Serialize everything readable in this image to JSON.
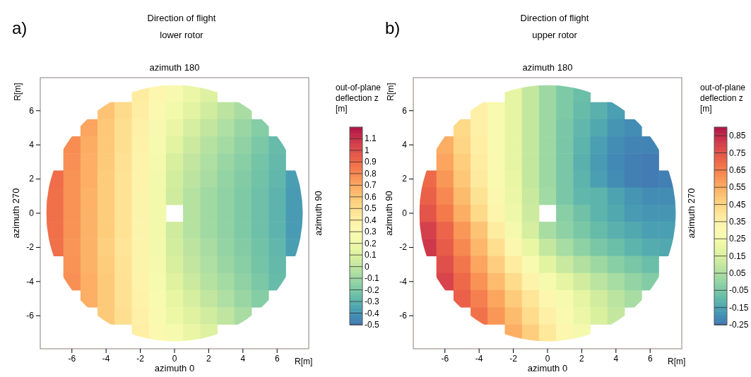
{
  "chart_data": [
    {
      "type": "heatmap",
      "title": "Direction of flight",
      "subtitle": "lower rotor",
      "xlabel": "R[m]",
      "ylabel": "R[m]",
      "clabel": "out-of-plane deflection z [m]",
      "annotations": [
        "a)",
        "azimuth 180",
        "azimuth 0",
        "azimuth 270",
        "azimuth 90"
      ],
      "categories": [
        null,
        "-6",
        null,
        "-4",
        null,
        "-2",
        null,
        "0",
        null,
        "2",
        null,
        "4",
        null,
        "6",
        null
      ],
      "y_categories": [
        null,
        "6",
        null,
        "4",
        null,
        "2",
        null,
        "0",
        null,
        "-2",
        null,
        "-4",
        null,
        "-6",
        null
      ],
      "clim": [
        -0.5,
        1.2
      ],
      "cticks": [
        -0.5,
        -0.4,
        -0.3,
        -0.2,
        -0.1,
        0,
        0.1,
        0.2,
        0.3,
        0.4,
        0.5,
        0.6,
        0.7,
        0.8,
        0.9,
        1,
        1.1
      ],
      "cells": [
        [
          null,
          null,
          null,
          null,
          null,
          0.42,
          0.34,
          0.28,
          0.18,
          0.11,
          null,
          null,
          null,
          null,
          null
        ],
        [
          null,
          null,
          null,
          0.61,
          0.51,
          0.41,
          0.31,
          0.22,
          0.13,
          0.06,
          -0.01,
          -0.07,
          null,
          null,
          null
        ],
        [
          null,
          null,
          0.71,
          0.59,
          0.49,
          0.39,
          0.28,
          0.17,
          0.08,
          0.01,
          -0.05,
          -0.11,
          -0.17,
          null,
          null
        ],
        [
          null,
          0.79,
          0.69,
          0.59,
          0.49,
          0.38,
          0.26,
          0.13,
          0.04,
          -0.03,
          -0.08,
          -0.14,
          -0.2,
          -0.26,
          null
        ],
        [
          null,
          0.78,
          0.68,
          0.58,
          0.48,
          0.37,
          0.24,
          0.09,
          0.01,
          -0.05,
          -0.11,
          -0.16,
          -0.22,
          -0.27,
          null
        ],
        [
          0.89,
          0.77,
          0.68,
          0.57,
          0.47,
          0.37,
          0.23,
          0.07,
          -0.01,
          -0.07,
          -0.13,
          -0.18,
          -0.23,
          -0.28,
          -0.37
        ],
        [
          0.88,
          0.77,
          0.67,
          0.57,
          0.47,
          0.36,
          0.22,
          0.05,
          -0.03,
          -0.09,
          -0.14,
          -0.19,
          -0.24,
          -0.29,
          -0.38
        ],
        [
          0.88,
          0.77,
          0.67,
          0.57,
          0.47,
          0.36,
          0.22,
          null,
          -0.03,
          -0.09,
          -0.14,
          -0.19,
          -0.24,
          -0.29,
          -0.38
        ],
        [
          0.88,
          0.77,
          0.67,
          0.57,
          0.47,
          0.36,
          0.22,
          0.05,
          -0.03,
          -0.09,
          -0.14,
          -0.19,
          -0.24,
          -0.29,
          -0.38
        ],
        [
          0.88,
          0.76,
          0.67,
          0.56,
          0.46,
          0.36,
          0.23,
          0.07,
          -0.01,
          -0.07,
          -0.13,
          -0.18,
          -0.23,
          -0.28,
          -0.37
        ],
        [
          null,
          0.77,
          0.67,
          0.57,
          0.47,
          0.36,
          0.24,
          0.09,
          0.01,
          -0.05,
          -0.11,
          -0.16,
          -0.22,
          -0.27,
          null
        ],
        [
          null,
          0.78,
          0.68,
          0.58,
          0.48,
          0.37,
          0.25,
          0.12,
          0.04,
          -0.03,
          -0.08,
          -0.14,
          -0.2,
          -0.26,
          null
        ],
        [
          null,
          null,
          0.68,
          0.58,
          0.48,
          0.38,
          0.27,
          0.16,
          0.08,
          0.01,
          -0.05,
          -0.11,
          -0.17,
          null,
          null
        ],
        [
          null,
          null,
          null,
          0.58,
          0.49,
          0.39,
          0.29,
          0.19,
          0.12,
          0.06,
          0,
          -0.07,
          null,
          null,
          null
        ],
        [
          null,
          null,
          null,
          null,
          null,
          0.4,
          0.32,
          0.25,
          0.17,
          0.11,
          null,
          null,
          null,
          null,
          null
        ]
      ]
    },
    {
      "type": "heatmap",
      "title": "Direction of flight",
      "subtitle": "upper rotor",
      "xlabel": "R[m]",
      "ylabel": "R[m]",
      "clabel": "out-of-plane deflection z [m]",
      "annotations": [
        "b)",
        "azimuth 180",
        "azimuth 0",
        "azimuth 90",
        "azimuth 270"
      ],
      "categories": [
        null,
        "-6",
        null,
        "-4",
        null,
        "-2",
        null,
        "0",
        null,
        "2",
        null,
        "4",
        null,
        "6",
        null
      ],
      "y_categories": [
        null,
        "6",
        null,
        "4",
        null,
        "2",
        null,
        "0",
        null,
        "-2",
        null,
        "-4",
        null,
        "-6",
        null
      ],
      "clim": [
        -0.25,
        0.9
      ],
      "cticks": [
        -0.25,
        -0.15,
        -0.05,
        0.05,
        0.15,
        0.25,
        0.35,
        0.45,
        0.55,
        0.65,
        0.75,
        0.85
      ],
      "cells": [
        [
          null,
          null,
          null,
          null,
          null,
          0.19,
          0.1,
          0.02,
          -0.04,
          -0.08,
          null,
          null,
          null,
          null,
          null
        ],
        [
          null,
          null,
          null,
          0.35,
          0.27,
          0.19,
          0.1,
          0.02,
          -0.04,
          -0.09,
          -0.12,
          -0.16,
          null,
          null,
          null
        ],
        [
          null,
          null,
          0.44,
          0.35,
          0.27,
          0.19,
          0.1,
          0.02,
          -0.05,
          -0.1,
          -0.14,
          -0.18,
          -0.2,
          null,
          null
        ],
        [
          null,
          0.55,
          0.45,
          0.36,
          0.27,
          0.19,
          0.1,
          0.02,
          -0.05,
          -0.11,
          -0.16,
          -0.2,
          -0.22,
          -0.22,
          null
        ],
        [
          null,
          0.57,
          0.47,
          0.37,
          0.28,
          0.19,
          0.1,
          0.02,
          -0.05,
          -0.12,
          -0.17,
          -0.21,
          -0.23,
          -0.24,
          null
        ],
        [
          0.7,
          0.6,
          0.49,
          0.38,
          0.29,
          0.2,
          0.1,
          0.02,
          -0.05,
          -0.11,
          -0.16,
          -0.2,
          -0.23,
          -0.24,
          -0.23
        ],
        [
          0.72,
          0.63,
          0.52,
          0.41,
          0.31,
          0.21,
          0.11,
          0.03,
          -0.05,
          -0.1,
          -0.11,
          -0.15,
          -0.18,
          -0.2,
          -0.2
        ],
        [
          0.75,
          0.66,
          0.55,
          0.44,
          0.33,
          0.22,
          0.12,
          null,
          -0.02,
          -0.07,
          -0.11,
          -0.14,
          -0.17,
          -0.18,
          -0.18
        ],
        [
          0.8,
          0.71,
          0.6,
          0.5,
          0.37,
          0.25,
          0.14,
          0.04,
          -0.01,
          -0.05,
          -0.09,
          -0.12,
          -0.14,
          -0.16,
          -0.16
        ],
        [
          0.82,
          0.73,
          0.63,
          0.53,
          0.42,
          0.31,
          0.2,
          0.1,
          0.04,
          -0.01,
          -0.05,
          -0.08,
          -0.11,
          -0.13,
          -0.14
        ],
        [
          null,
          0.76,
          0.67,
          0.57,
          0.47,
          0.37,
          0.27,
          0.18,
          0.11,
          0.06,
          0.02,
          -0.02,
          -0.05,
          -0.08,
          null
        ],
        [
          null,
          0.79,
          0.7,
          0.61,
          0.52,
          0.43,
          0.34,
          0.26,
          0.19,
          0.13,
          0.08,
          0.04,
          0,
          -0.03,
          null
        ],
        [
          null,
          null,
          0.72,
          0.65,
          0.57,
          0.48,
          0.4,
          0.32,
          0.26,
          0.19,
          0.13,
          0.08,
          0.04,
          null,
          null
        ],
        [
          null,
          null,
          null,
          0.68,
          0.6,
          0.52,
          0.43,
          0.35,
          0.28,
          0.21,
          0.15,
          0.1,
          null,
          null,
          null
        ],
        [
          null,
          null,
          null,
          null,
          null,
          0.55,
          0.47,
          0.39,
          0.32,
          0.25,
          null,
          null,
          null,
          null,
          null
        ]
      ]
    }
  ]
}
